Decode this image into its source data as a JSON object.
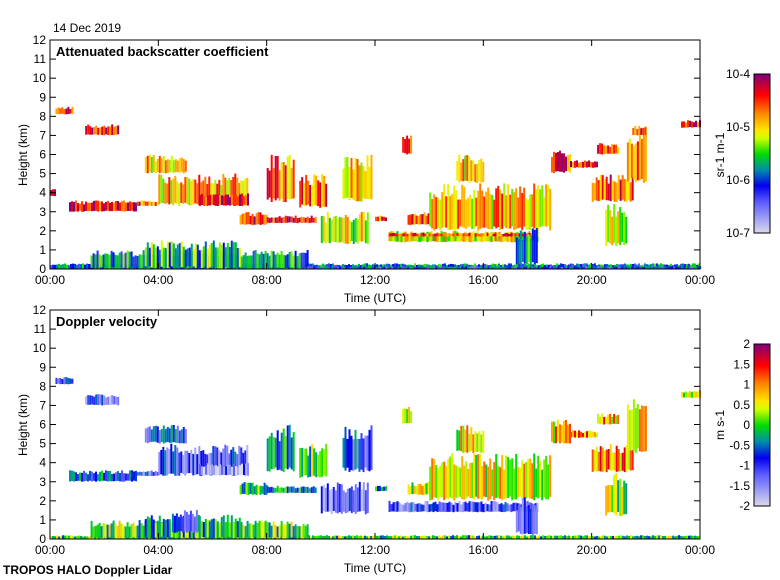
{
  "date_label": "14 Dec 2019",
  "footer": "TROPOS HALO Doppler Lidar",
  "chart_data": [
    {
      "type": "heatmap",
      "title": "Attenuated backscatter coefficient",
      "xlabel": "Time (UTC)",
      "ylabel": "Height (km)",
      "xlim": [
        0,
        24
      ],
      "ylim": [
        0,
        12
      ],
      "xticks": [
        "00:00",
        "04:00",
        "08:00",
        "12:00",
        "16:00",
        "20:00",
        "00:00"
      ],
      "yticks": [
        "0",
        "1",
        "2",
        "3",
        "4",
        "5",
        "6",
        "7",
        "8",
        "9",
        "10",
        "11",
        "12"
      ],
      "colorbar": {
        "label": "sr-1 m-1",
        "scale": "log10",
        "range": [
          -7,
          -4
        ],
        "ticks": [
          "10-7",
          "10-6",
          "10-5",
          "10-4"
        ]
      },
      "features_note": "[t_start_h, t_end_h, h_bottom_km, h_top_km, log10 value]",
      "features": [
        [
          0,
          24,
          0,
          0.3,
          -5.9
        ],
        [
          1.5,
          9.5,
          0,
          1.0,
          -5.8
        ],
        [
          3.5,
          7,
          0,
          1.5,
          -5.6
        ],
        [
          9.5,
          24,
          0,
          0.15,
          -6.1
        ],
        [
          0.2,
          0.8,
          8.1,
          8.5,
          -4.4
        ],
        [
          1.3,
          2.5,
          7.0,
          7.6,
          -4.4
        ],
        [
          0,
          0.2,
          3.8,
          4.2,
          -4.6
        ],
        [
          0.7,
          3.2,
          3.0,
          3.6,
          -4.3
        ],
        [
          3.2,
          4.0,
          3.3,
          3.6,
          -4.6
        ],
        [
          3.5,
          5.0,
          5.0,
          6.0,
          -5.0
        ],
        [
          4.0,
          7.3,
          3.3,
          5.0,
          -4.9
        ],
        [
          5.5,
          7.3,
          3.3,
          4.0,
          -4.3
        ],
        [
          7.0,
          8.0,
          2.3,
          3.0,
          -4.4
        ],
        [
          8.0,
          9.8,
          2.4,
          2.8,
          -4.4
        ],
        [
          8.0,
          9.0,
          3.5,
          6.0,
          -4.7
        ],
        [
          9.2,
          10.2,
          3.2,
          5.0,
          -4.6
        ],
        [
          10.0,
          11.7,
          1.3,
          3.0,
          -5.2
        ],
        [
          10.8,
          11.9,
          3.5,
          6.0,
          -4.9
        ],
        [
          12.0,
          12.4,
          2.5,
          2.8,
          -4.6
        ],
        [
          12.5,
          18.0,
          1.4,
          2.0,
          -5.1
        ],
        [
          12.5,
          18.0,
          1.7,
          1.9,
          -4.6
        ],
        [
          13.2,
          14.0,
          2.3,
          3.0,
          -4.6
        ],
        [
          13.0,
          13.3,
          6.0,
          7.0,
          -4.7
        ],
        [
          14.0,
          18.5,
          2.0,
          4.5,
          -4.9
        ],
        [
          15.0,
          16.0,
          4.5,
          6.0,
          -5.0
        ],
        [
          17.2,
          18.0,
          0.2,
          2.2,
          -5.7
        ],
        [
          18.5,
          19.2,
          5.0,
          6.3,
          -4.5
        ],
        [
          19.2,
          20.2,
          5.3,
          5.7,
          -4.4
        ],
        [
          20.2,
          21.0,
          6.0,
          6.6,
          -4.5
        ],
        [
          20.0,
          21.5,
          3.5,
          5.0,
          -4.6
        ],
        [
          20.5,
          21.3,
          1.2,
          3.5,
          -5.2
        ],
        [
          21.3,
          22.0,
          4.5,
          7.5,
          -4.8
        ],
        [
          21.5,
          22.0,
          7.0,
          7.5,
          -4.4
        ],
        [
          23.3,
          24,
          7.4,
          7.8,
          -4.3
        ]
      ]
    },
    {
      "type": "heatmap",
      "title": "Doppler velocity",
      "xlabel": "Time (UTC)",
      "ylabel": "Height (km)",
      "xlim": [
        0,
        24
      ],
      "ylim": [
        0,
        12
      ],
      "xticks": [
        "00:00",
        "04:00",
        "08:00",
        "12:00",
        "16:00",
        "20:00",
        "00:00"
      ],
      "yticks": [
        "0",
        "1",
        "2",
        "3",
        "4",
        "5",
        "6",
        "7",
        "8",
        "9",
        "10",
        "11",
        "12"
      ],
      "colorbar": {
        "label": "m s-1",
        "scale": "linear",
        "range": [
          -2,
          2
        ],
        "ticks": [
          "-2",
          "-1.5",
          "-1",
          "-0.5",
          "0",
          "0.5",
          "1",
          "1.5",
          "2"
        ]
      },
      "features_note": "[t_start_h, t_end_h, h_bottom_km, h_top_km, velocity m/s]",
      "features": [
        [
          0,
          24,
          0,
          0.2,
          0.0
        ],
        [
          1.5,
          9.5,
          0,
          1.0,
          0.1
        ],
        [
          3.5,
          7,
          0,
          1.3,
          -0.2
        ],
        [
          4.5,
          5.5,
          0.3,
          1.6,
          -0.9
        ],
        [
          0.2,
          0.8,
          8.1,
          8.5,
          -1.2
        ],
        [
          1.3,
          2.5,
          7.0,
          7.6,
          -1.2
        ],
        [
          0.7,
          3.2,
          3.0,
          3.6,
          -0.6
        ],
        [
          3.2,
          4.0,
          3.3,
          3.6,
          -1.0
        ],
        [
          3.5,
          5.0,
          5.0,
          6.0,
          -0.8
        ],
        [
          4.0,
          7.3,
          3.3,
          5.0,
          -1.1
        ],
        [
          5.5,
          7.3,
          3.3,
          4.0,
          -1.4
        ],
        [
          7.0,
          8.0,
          2.3,
          3.0,
          -0.2
        ],
        [
          8.0,
          9.8,
          2.4,
          2.8,
          -0.4
        ],
        [
          8.0,
          9.0,
          3.5,
          6.0,
          -0.3
        ],
        [
          9.2,
          10.2,
          3.2,
          5.0,
          0.0
        ],
        [
          10.0,
          11.7,
          1.3,
          3.0,
          -1.2
        ],
        [
          10.8,
          11.9,
          3.5,
          6.0,
          -0.9
        ],
        [
          12.0,
          12.4,
          2.5,
          2.8,
          -0.5
        ],
        [
          12.5,
          18.0,
          1.4,
          2.0,
          -1.1
        ],
        [
          13.2,
          14.0,
          2.3,
          3.0,
          0.4
        ],
        [
          13.0,
          13.3,
          6.0,
          7.0,
          0.6
        ],
        [
          14.0,
          18.5,
          2.0,
          4.5,
          0.5
        ],
        [
          15.0,
          16.0,
          4.5,
          6.0,
          0.6
        ],
        [
          17.2,
          18.0,
          0.2,
          2.2,
          -1.0
        ],
        [
          18.5,
          19.2,
          5.0,
          6.3,
          0.7
        ],
        [
          19.2,
          20.2,
          5.3,
          5.7,
          0.9
        ],
        [
          20.2,
          21.0,
          6.0,
          6.6,
          0.8
        ],
        [
          20.0,
          21.5,
          3.5,
          5.0,
          1.0
        ],
        [
          20.5,
          21.3,
          1.2,
          3.5,
          0.3
        ],
        [
          21.3,
          22.0,
          4.5,
          7.5,
          0.6
        ],
        [
          23.3,
          24,
          7.4,
          7.8,
          0.3
        ]
      ]
    }
  ]
}
